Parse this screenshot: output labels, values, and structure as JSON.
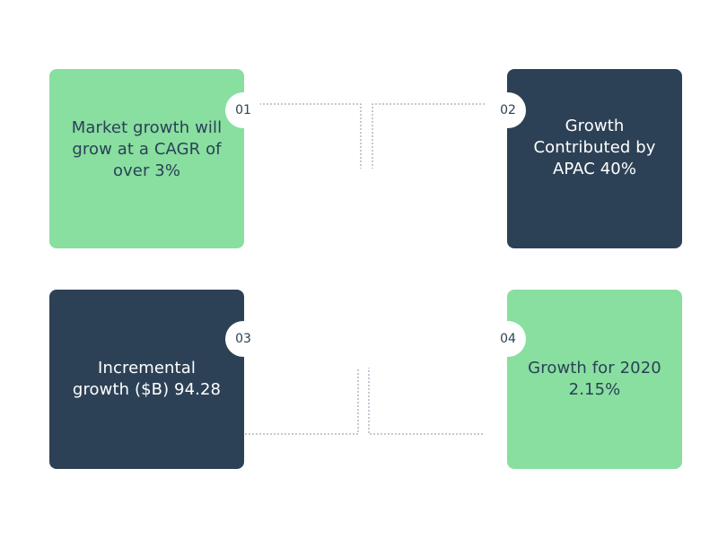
{
  "items": [
    {
      "number": "01",
      "text": "Market growth will grow at a CAGR of over 3%"
    },
    {
      "number": "02",
      "text": "Growth Contributed by APAC 40%"
    },
    {
      "number": "03",
      "text": "Incremental growth ($B) 94.28"
    },
    {
      "number": "04",
      "text": "Growth for 2020 2.15%"
    }
  ],
  "colors": {
    "green": "#88df9f",
    "navy": "#2d4156",
    "connector": "#8a96a8"
  }
}
